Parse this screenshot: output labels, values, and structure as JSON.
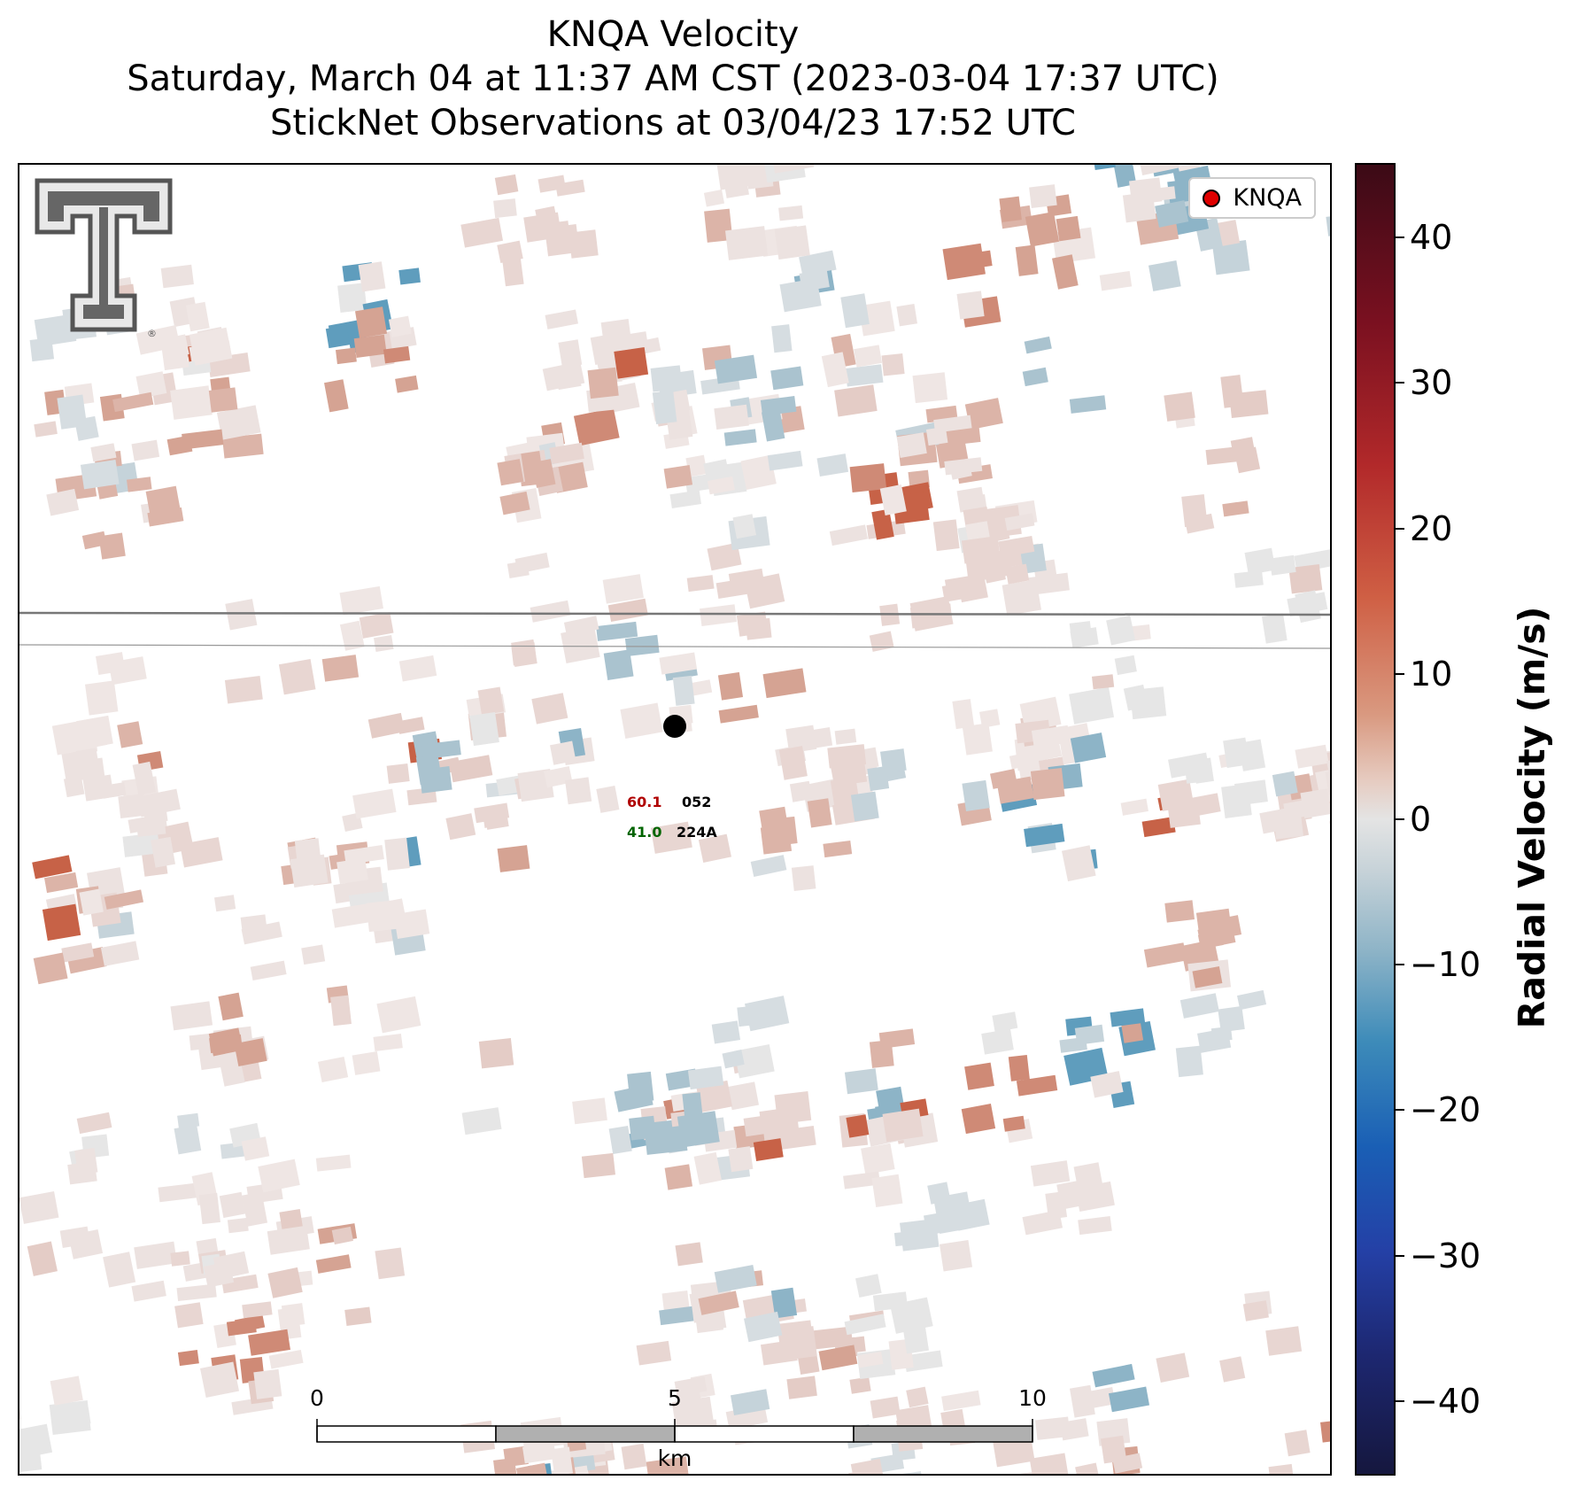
{
  "title": {
    "line1": "KNQA Velocity",
    "line2": "Saturday, March 04 at 11:37 AM CST (2023-03-04 17:37 UTC)",
    "line3": "StickNet Observations at 03/04/23 17:52 UTC"
  },
  "legend": {
    "label": "KNQA"
  },
  "station": {
    "top_left": "60.1",
    "top_right": "052",
    "bottom_left": "41.0",
    "bottom_right": "224A",
    "colors": {
      "top_left": "#b00000",
      "bottom_left": "#006400",
      "right": "#000000"
    }
  },
  "colorbar": {
    "title": "Radial Velocity (m/s)",
    "ticks": [
      "40",
      "30",
      "20",
      "10",
      "0",
      "−10",
      "−20",
      "−30",
      "−40"
    ],
    "range": [
      -45,
      45
    ]
  },
  "scale_bar": {
    "labels": [
      "0",
      "5",
      "10"
    ],
    "unit": "km"
  },
  "logo": {
    "icon": "texas-tech-double-t-logo"
  }
}
